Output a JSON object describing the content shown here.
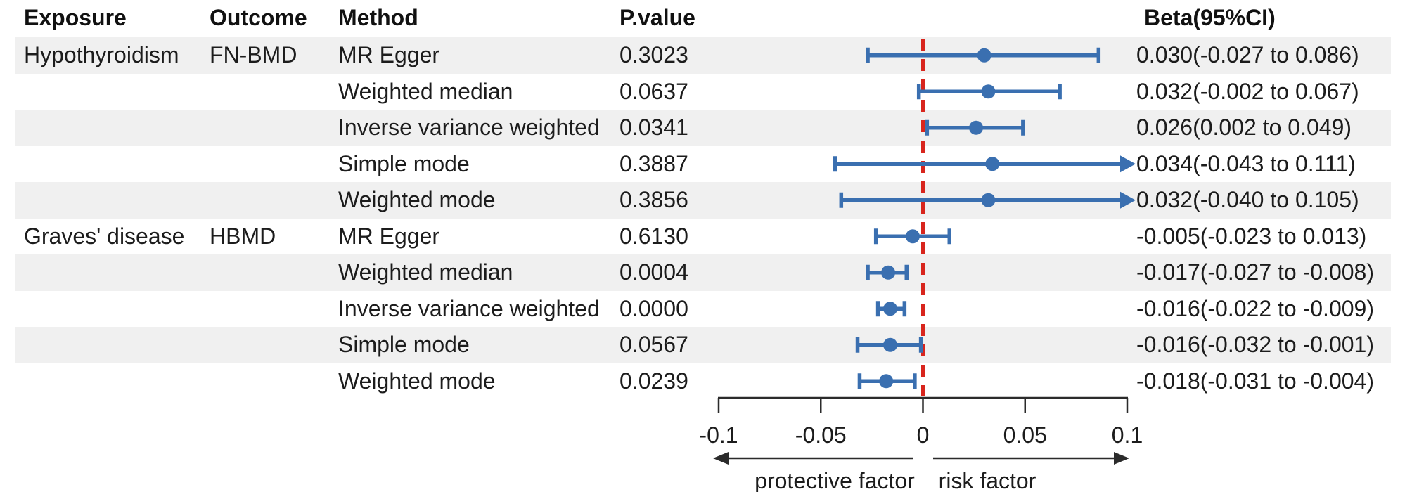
{
  "chart_data": {
    "type": "forest",
    "columns": [
      "Exposure",
      "Outcome",
      "Method",
      "P.value",
      "Beta(95%CI)"
    ],
    "xlim": [
      -0.1,
      0.1
    ],
    "x_ticks": [
      -0.1,
      -0.05,
      0,
      0.05,
      0.1
    ],
    "x_tick_labels": [
      "-0.1",
      "-0.05",
      "0",
      "0.05",
      "0.1"
    ],
    "reference_line": 0,
    "direction_labels": {
      "left": "protective factor",
      "right": "risk factor"
    },
    "rows": [
      {
        "exposure": "Hypothyroidism",
        "outcome": "FN-BMD",
        "method": "MR Egger",
        "p_value": "0.3023",
        "beta": 0.03,
        "ci_low": -0.027,
        "ci_high": 0.086,
        "beta_ci_text": "0.030(-0.027 to 0.086)"
      },
      {
        "exposure": "",
        "outcome": "",
        "method": "Weighted median",
        "p_value": "0.0637",
        "beta": 0.032,
        "ci_low": -0.002,
        "ci_high": 0.067,
        "beta_ci_text": "0.032(-0.002 to 0.067)"
      },
      {
        "exposure": "",
        "outcome": "",
        "method": "Inverse variance weighted",
        "p_value": "0.0341",
        "beta": 0.026,
        "ci_low": 0.002,
        "ci_high": 0.049,
        "beta_ci_text": "0.026(0.002 to 0.049)"
      },
      {
        "exposure": "",
        "outcome": "",
        "method": "Simple mode",
        "p_value": "0.3887",
        "beta": 0.034,
        "ci_low": -0.043,
        "ci_high": 0.111,
        "beta_ci_text": "0.034(-0.043 to 0.111)"
      },
      {
        "exposure": "",
        "outcome": "",
        "method": "Weighted mode",
        "p_value": "0.3856",
        "beta": 0.032,
        "ci_low": -0.04,
        "ci_high": 0.105,
        "beta_ci_text": "0.032(-0.040 to 0.105)"
      },
      {
        "exposure": "Graves' disease",
        "outcome": "HBMD",
        "method": "MR Egger",
        "p_value": "0.6130",
        "beta": -0.005,
        "ci_low": -0.023,
        "ci_high": 0.013,
        "beta_ci_text": "-0.005(-0.023 to 0.013)"
      },
      {
        "exposure": "",
        "outcome": "",
        "method": "Weighted median",
        "p_value": "0.0004",
        "beta": -0.017,
        "ci_low": -0.027,
        "ci_high": -0.008,
        "beta_ci_text": "-0.017(-0.027 to -0.008)"
      },
      {
        "exposure": "",
        "outcome": "",
        "method": "Inverse variance weighted",
        "p_value": "0.0000",
        "beta": -0.016,
        "ci_low": -0.022,
        "ci_high": -0.009,
        "beta_ci_text": "-0.016(-0.022 to -0.009)"
      },
      {
        "exposure": "",
        "outcome": "",
        "method": "Simple mode",
        "p_value": "0.0567",
        "beta": -0.016,
        "ci_low": -0.032,
        "ci_high": -0.001,
        "beta_ci_text": "-0.016(-0.032 to -0.001)"
      },
      {
        "exposure": "",
        "outcome": "",
        "method": "Weighted mode",
        "p_value": "0.0239",
        "beta": -0.018,
        "ci_low": -0.031,
        "ci_high": -0.004,
        "beta_ci_text": "-0.018(-0.031 to -0.004)"
      }
    ]
  },
  "colors": {
    "marker_blue": "#3a6fb0",
    "reference_red": "#d8251d",
    "stripe_gray": "#f0f0f0",
    "axis_black": "#2b2b2b",
    "text_black": "#1c1c1c"
  }
}
